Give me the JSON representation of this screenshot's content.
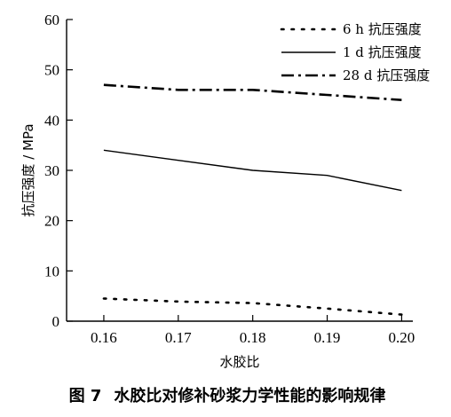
{
  "chart_data": {
    "type": "line",
    "x": [
      0.16,
      0.17,
      0.18,
      0.19,
      0.2
    ],
    "x_tick_labels": [
      "0.16",
      "0.17",
      "0.18",
      "0.19",
      "0.20"
    ],
    "xlim": [
      0.155,
      0.2015
    ],
    "y_ticks": [
      0,
      10,
      20,
      30,
      40,
      50,
      60
    ],
    "ylim": [
      0,
      60
    ],
    "xlabel": "水胶比",
    "ylabel": "抗压强度 / MPa",
    "legend_position": "top-right",
    "series": [
      {
        "name": "6 h 抗压强度",
        "style": "dotted",
        "values": [
          4.5,
          3.9,
          3.6,
          2.5,
          1.3
        ]
      },
      {
        "name": "1 d 抗压强度",
        "style": "solid",
        "values": [
          34,
          32,
          30,
          29,
          26
        ]
      },
      {
        "name": "28 d 抗压强度",
        "style": "dashdot",
        "values": [
          47,
          46,
          46,
          45,
          44
        ]
      }
    ]
  },
  "caption": {
    "figure_number": "图 7",
    "text": "水胶比对修补砂浆力学性能的影响规律"
  }
}
